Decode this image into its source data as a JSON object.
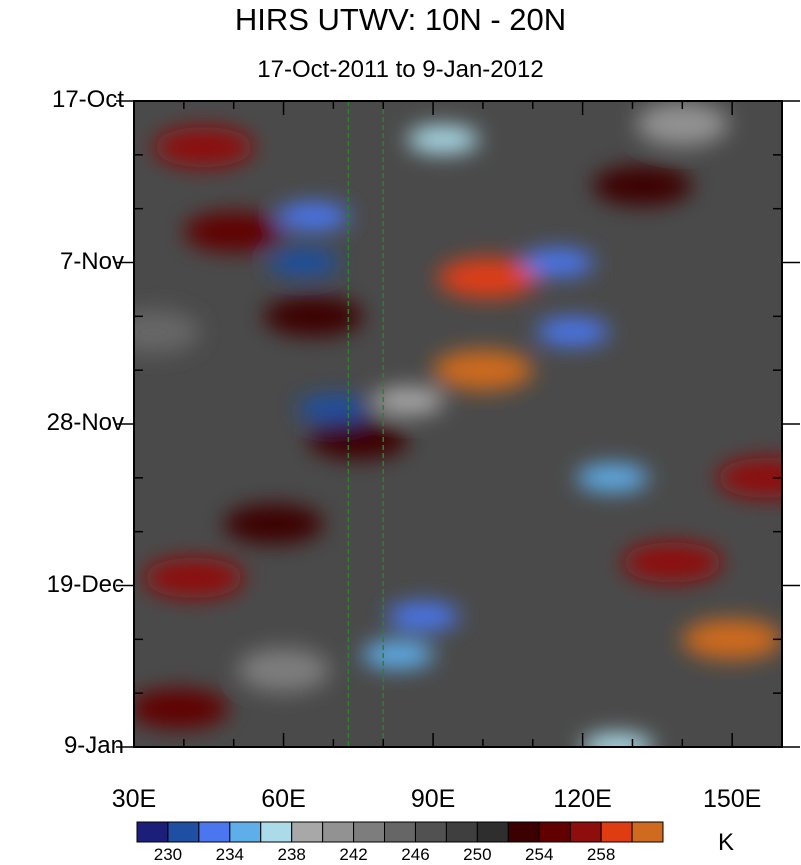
{
  "chart_data": {
    "type": "heatmap",
    "title": "HIRS UTWV: 10N - 20N",
    "subtitle": "17-Oct-2011 to 9-Jan-2012",
    "x_axis": {
      "range": [
        30,
        160
      ],
      "ticks": [
        30,
        60,
        90,
        120,
        150
      ],
      "tick_labels": [
        "30E",
        "60E",
        "90E",
        "120E",
        "150E"
      ]
    },
    "y_axis": {
      "range_days": [
        0,
        84
      ],
      "ticks": [
        0,
        21,
        42,
        63,
        84
      ],
      "tick_labels": [
        "17-Oct",
        "7-Nov",
        "28-Nov",
        "19-Dec",
        "9-Jan"
      ]
    },
    "reference_lines_x": [
      73,
      80
    ],
    "colorbar": {
      "unit": "K",
      "levels": [
        228,
        230,
        232,
        234,
        236,
        238,
        240,
        242,
        244,
        246,
        248,
        250,
        252,
        254,
        256,
        258,
        260
      ],
      "labels": [
        "230",
        "234",
        "238",
        "242",
        "246",
        "250",
        "254",
        "258"
      ],
      "colors": [
        "#1b1f7a",
        "#1f4fa3",
        "#4a77f0",
        "#5eaeea",
        "#abdbe9",
        "#a8a8a8",
        "#929292",
        "#7d7d7d",
        "#666666",
        "#515151",
        "#3f3f3f",
        "#2e2e2e",
        "#3d0000",
        "#620000",
        "#8e0d0d",
        "#e03c12",
        "#cf6a1f"
      ]
    },
    "features": [
      {
        "lon": 44,
        "day": 6,
        "value": 256
      },
      {
        "lon": 39,
        "day": 79,
        "value": 255
      },
      {
        "lon": 66,
        "day": 28,
        "value": 253
      },
      {
        "lon": 50,
        "day": 17,
        "value": 255
      },
      {
        "lon": 42,
        "day": 62,
        "value": 256
      },
      {
        "lon": 100,
        "day": 35,
        "value": 260
      },
      {
        "lon": 101,
        "day": 23,
        "value": 258
      },
      {
        "lon": 150,
        "day": 70,
        "value": 260
      },
      {
        "lon": 138,
        "day": 60,
        "value": 256
      },
      {
        "lon": 132,
        "day": 11,
        "value": 252
      },
      {
        "lon": 75,
        "day": 44,
        "value": 253
      },
      {
        "lon": 58,
        "day": 55,
        "value": 252
      },
      {
        "lon": 157,
        "day": 49,
        "value": 256
      },
      {
        "lon": 66,
        "day": 15,
        "value": 232
      },
      {
        "lon": 64,
        "day": 21,
        "value": 231
      },
      {
        "lon": 70,
        "day": 40,
        "value": 230
      },
      {
        "lon": 115,
        "day": 21,
        "value": 232
      },
      {
        "lon": 118,
        "day": 30,
        "value": 233
      },
      {
        "lon": 126,
        "day": 49,
        "value": 235
      },
      {
        "lon": 88,
        "day": 67,
        "value": 232
      },
      {
        "lon": 83,
        "day": 72,
        "value": 235
      },
      {
        "lon": 92,
        "day": 5,
        "value": 236
      },
      {
        "lon": 85,
        "day": 39,
        "value": 238
      },
      {
        "lon": 140,
        "day": 3,
        "value": 240
      },
      {
        "lon": 127,
        "day": 84,
        "value": 236
      },
      {
        "lon": 34,
        "day": 30,
        "value": 244
      },
      {
        "lon": 60,
        "day": 74,
        "value": 243
      }
    ]
  }
}
